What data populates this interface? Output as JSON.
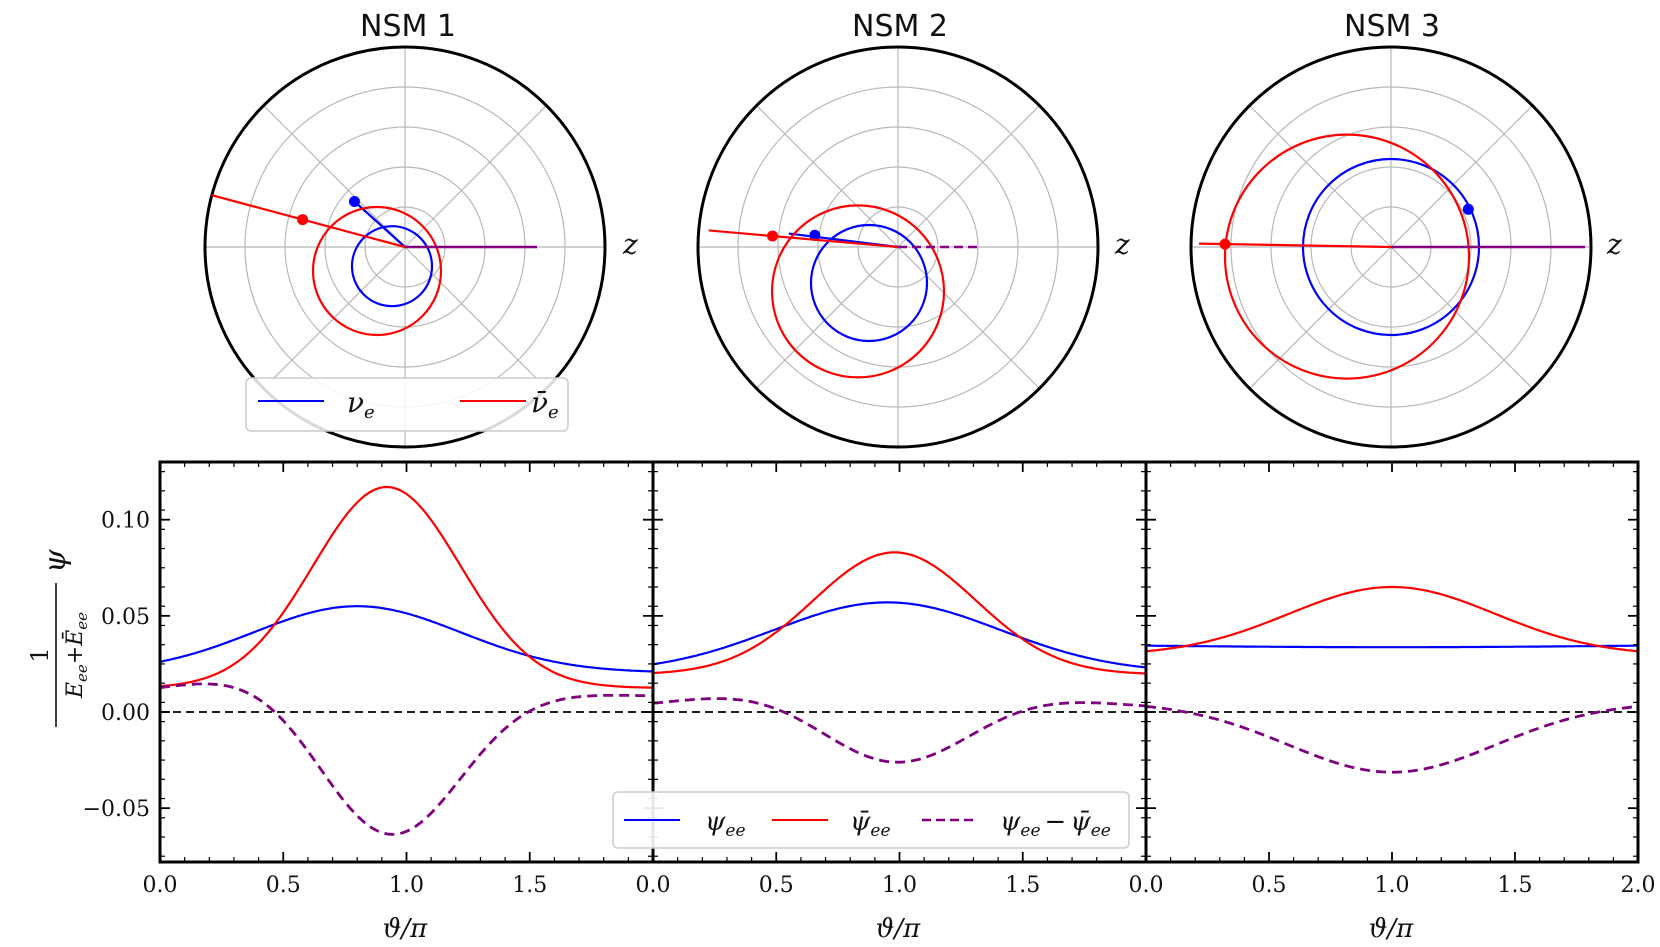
{
  "chart_data": [
    {
      "type": "polar",
      "title": "NSM 1",
      "axis_label": "z",
      "rings": 5,
      "spokes": 8,
      "rmax": 1.0,
      "series": [
        {
          "name": "nu_e",
          "color": "#0000ff",
          "circle_center": [
            -0.065,
            0.16
          ],
          "circle_radius": 0.2,
          "ray_angle_deg": 138,
          "ray_length": 0.34,
          "marker_angle_deg": 138
        },
        {
          "name": "nu_e_bar",
          "color": "#ff0000",
          "circle_center": [
            -0.14,
            0.2
          ],
          "circle_radius": 0.32,
          "ray_angle_deg": 165,
          "ray_length": 1.0,
          "marker_angle_deg": 165,
          "marker_r": 0.53
        }
      ],
      "z_line_length": 0.66
    },
    {
      "type": "polar",
      "title": "NSM 2",
      "axis_label": "z",
      "rings": 5,
      "spokes": 8,
      "rmax": 1.0,
      "series": [
        {
          "name": "nu_e",
          "color": "#0000ff",
          "circle_center": [
            -0.145,
            0.3
          ],
          "circle_radius": 0.29,
          "ray_angle_deg": 173,
          "ray_length": 0.55,
          "marker_angle_deg": 172,
          "marker_r": 0.42
        },
        {
          "name": "nu_e_bar",
          "color": "#ff0000",
          "circle_center": [
            -0.2,
            0.37
          ],
          "circle_radius": 0.43,
          "ray_angle_deg": 175,
          "ray_length": 0.95,
          "marker_angle_deg": 175,
          "marker_r": 0.63
        }
      ],
      "z_line_length": 0.4
    },
    {
      "type": "polar",
      "title": "NSM 3",
      "axis_label": "z",
      "rings": 5,
      "spokes": 8,
      "rmax": 1.0,
      "series": [
        {
          "name": "nu_e",
          "color": "#0000ff",
          "circle_center": [
            0.0,
            0.0
          ],
          "circle_radius": 0.44,
          "ray_angle_deg": 30,
          "ray_length": 0.0,
          "marker_angle_deg": 26,
          "marker_r": 0.43
        },
        {
          "name": "nu_e_bar",
          "color": "#ff0000",
          "circle_center": [
            -0.22,
            0.08
          ],
          "circle_radius": 0.61,
          "ray_angle_deg": 179,
          "ray_length": 0.96,
          "marker_angle_deg": 179,
          "marker_r": 0.83
        }
      ],
      "z_line_length": 0.97
    },
    {
      "type": "line",
      "panels": 3,
      "xlim": [
        0.0,
        2.0
      ],
      "ylim": [
        -0.078,
        0.13
      ],
      "xlabel": "ϑ/π",
      "ylabel": "ψ",
      "x_ticks": [
        "0.0",
        "0.5",
        "1.0",
        "1.5",
        "0.0",
        "0.5",
        "1.0",
        "1.5",
        "0.0",
        "0.5",
        "1.0",
        "1.5",
        "2.0"
      ],
      "y_ticks": [
        0.1,
        0.05,
        0.0,
        -0.05
      ],
      "y_tick_labels": [
        "0.10",
        "0.05",
        "0.00",
        "−0.05"
      ],
      "zero_line": true,
      "series": [
        {
          "name": "psi_ee",
          "color": "#0000ff",
          "panel_values": [
            {
              "A": 0.0205,
              "B": 0.0345,
              "mu": 0.8,
              "sigma": 0.42,
              "tilt": 0.0
            },
            {
              "A": 0.0205,
              "B": 0.0365,
              "mu": 0.95,
              "sigma": 0.46,
              "tilt": 0.0
            },
            {
              "A": 0.0345,
              "B": 0.0,
              "mu": 1.0,
              "sigma": 0.5,
              "tilt": -0.0008
            }
          ]
        },
        {
          "name": "psi_ee_bar",
          "color": "#ff0000",
          "panel_values": [
            {
              "A": 0.0125,
              "B": 0.1045,
              "mu": 0.92,
              "sigma": 0.3,
              "tilt": 0.0
            },
            {
              "A": 0.0195,
              "B": 0.0635,
              "mu": 0.98,
              "sigma": 0.33,
              "tilt": 0.0
            },
            {
              "A": 0.0295,
              "B": 0.0355,
              "mu": 1.0,
              "sigma": 0.42,
              "tilt": 0.0
            }
          ]
        },
        {
          "name": "difference",
          "color": "#800080",
          "dashed": true,
          "panel_values": [
            {
              "peak": -0.066,
              "base": 0.01
            },
            {
              "peak": -0.027,
              "base": 0.001
            },
            {
              "peak": -0.031,
              "base": 0.006
            }
          ]
        }
      ]
    }
  ],
  "legends": {
    "top": {
      "nu_e": "ν",
      "nu_e_sub": "e",
      "nu_e_bar": "ν̄",
      "nu_e_bar_sub": "e"
    },
    "bottom": {
      "psi_ee": "ψ",
      "psi_ee_sub": "ee",
      "psi_ee_bar": "ψ̄",
      "psi_ee_bar_sub": "ee",
      "diff_a": "ψ",
      "diff_a_sub": "ee",
      "diff_op": "−",
      "diff_b": "ψ̄",
      "diff_b_sub": "ee"
    }
  },
  "ylabel_fraction": {
    "num": "1",
    "den_a": "E",
    "den_a_sub": "ee",
    "plus": "+",
    "den_b": "Ē",
    "den_b_sub": "ee"
  }
}
